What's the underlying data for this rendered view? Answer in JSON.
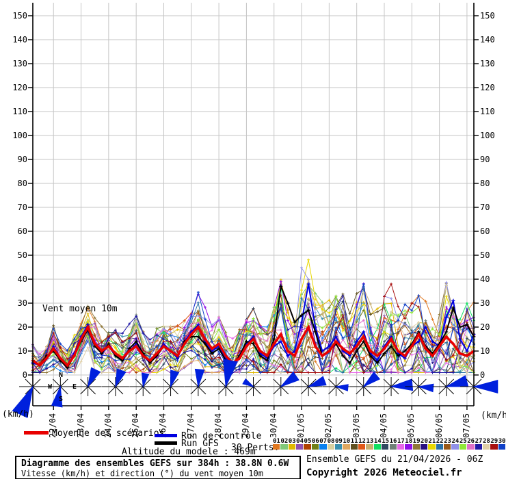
{
  "chart_data": {
    "type": "line",
    "title": "Vent moyen 10m",
    "unit_left": "(km/h)",
    "unit_right": "(km/h)",
    "ylim": [
      0,
      155
    ],
    "yticks": [
      0,
      10,
      20,
      30,
      40,
      50,
      60,
      70,
      80,
      90,
      100,
      110,
      120,
      130,
      140,
      150
    ],
    "x_day_labels": [
      "22/04",
      "23/04",
      "24/04",
      "25/04",
      "26/04",
      "27/04",
      "28/04",
      "29/04",
      "30/04",
      "01/05",
      "02/05",
      "03/05",
      "04/05",
      "05/05",
      "06/05",
      "07/05"
    ],
    "hours_per_step": 6,
    "total_hours": 384,
    "grid_color": "#c6c6c6",
    "axis_color": "#000000",
    "arrow_color": "#0020dd",
    "series": [
      {
        "name": "mean",
        "label": "Moyenne des scénarios",
        "color": "#e80000",
        "width": 3.5,
        "values": [
          6,
          4,
          7,
          11,
          7,
          4,
          8,
          15,
          20,
          13,
          10,
          12,
          9,
          7,
          10,
          12,
          8,
          6,
          9,
          12,
          10,
          8,
          13,
          17,
          20,
          15,
          11,
          13,
          8,
          5,
          7,
          12,
          15,
          10,
          8,
          13,
          17,
          10,
          8,
          15,
          20,
          12,
          8,
          10,
          14,
          11,
          9,
          12,
          16,
          10,
          8,
          11,
          15,
          10,
          8,
          12,
          17,
          11,
          8,
          12,
          16,
          13,
          9,
          8,
          10
        ]
      },
      {
        "name": "control",
        "label": "Run de contrôle",
        "color": "#0000e0",
        "width": 2,
        "values": [
          5,
          4,
          7,
          12,
          7,
          4,
          9,
          16,
          21,
          13,
          9,
          12,
          8,
          6,
          10,
          13,
          8,
          5,
          9,
          13,
          10,
          7,
          14,
          18,
          21,
          14,
          10,
          12,
          7,
          4,
          8,
          13,
          16,
          9,
          7,
          12,
          14,
          8,
          10,
          22,
          38,
          20,
          10,
          12,
          16,
          10,
          8,
          14,
          18,
          9,
          6,
          12,
          16,
          9,
          7,
          12,
          14,
          20,
          14,
          12,
          24,
          31,
          15,
          10,
          17
        ]
      },
      {
        "name": "gfs",
        "label": "Run GFS",
        "color": "#000000",
        "width": 2,
        "values": [
          6,
          4,
          8,
          10,
          6,
          3,
          8,
          14,
          19,
          12,
          9,
          13,
          8,
          6,
          11,
          14,
          9,
          5,
          8,
          12,
          10,
          8,
          14,
          16,
          16,
          13,
          9,
          11,
          6,
          4,
          8,
          14,
          13,
          8,
          6,
          15,
          37,
          30,
          22,
          25,
          27,
          18,
          8,
          10,
          13,
          8,
          5,
          10,
          14,
          8,
          5,
          9,
          12,
          8,
          10,
          13,
          18,
          12,
          9,
          13,
          18,
          28,
          20,
          21,
          16
        ]
      }
    ],
    "ensemble": {
      "count": 30,
      "seed": 1234,
      "spread": [
        4,
        4,
        4,
        5,
        4,
        4,
        5,
        5,
        5,
        6,
        6,
        6,
        6,
        6,
        6,
        7,
        7,
        6,
        6,
        7,
        7,
        7,
        7,
        8,
        8,
        8,
        7,
        7,
        7,
        6,
        7,
        9,
        9,
        8,
        8,
        12,
        13,
        13,
        12,
        15,
        17,
        16,
        13,
        13,
        14,
        13,
        12,
        14,
        15,
        13,
        12,
        13,
        14,
        13,
        12,
        13,
        14,
        14,
        13,
        13,
        15,
        15,
        13,
        12,
        12
      ],
      "colors": [
        "#e07820",
        "#80c878",
        "#e0b800",
        "#9050b0",
        "#b04000",
        "#708018",
        "#0880f0",
        "#d8d0a0",
        "#3890b0",
        "#e0a860",
        "#605020",
        "#e05818",
        "#c8b070",
        "#10e060",
        "#304860",
        "#708078",
        "#e868e8",
        "#9010e8",
        "#907838",
        "#281080",
        "#e8d800",
        "#2870a8",
        "#985818",
        "#9090e8",
        "#90e838",
        "#e070c8",
        "#2018a8",
        "#e0d0a8",
        "#a81010",
        "#1040c8"
      ]
    },
    "wind_arrows": [
      {
        "dir": 205,
        "len": 46
      },
      {
        "dir": 190,
        "len": 30
      },
      {
        "dir": 25,
        "len": 28
      },
      {
        "dir": 20,
        "len": 26
      },
      {
        "dir": 10,
        "len": 20
      },
      {
        "dir": 15,
        "len": 24
      },
      {
        "dir": 5,
        "len": 26
      },
      {
        "dir": 10,
        "len": 40
      },
      {
        "dir": 300,
        "len": 16
      },
      {
        "dir": 55,
        "len": 28
      },
      {
        "dir": 70,
        "len": 26
      },
      {
        "dir": 95,
        "len": 18
      },
      {
        "dir": 50,
        "len": 26
      },
      {
        "dir": 85,
        "len": 32
      },
      {
        "dir": 95,
        "len": 22
      },
      {
        "dir": 75,
        "len": 32
      },
      {
        "dir": 90,
        "len": 36
      }
    ],
    "compass": {
      "n": "N",
      "e": "E",
      "s": "S",
      "w": "W"
    }
  },
  "legend": {
    "mean_label": "Moyenne des scénarios",
    "control_label": "Run de contrôle",
    "gfs_label": "Run GFS",
    "perts_label": "30 Perts.",
    "member_numbers": [
      "01",
      "02",
      "03",
      "04",
      "05",
      "06",
      "07",
      "08",
      "09",
      "10",
      "11",
      "12",
      "13",
      "14",
      "15",
      "16",
      "17",
      "18",
      "19",
      "20",
      "21",
      "22",
      "23",
      "24",
      "25",
      "26",
      "27",
      "28",
      "29",
      "30"
    ]
  },
  "footer": {
    "altitude_label": "Altitude du modele : 469m",
    "box_title": "Diagramme des ensembles GEFS sur 384h : 38.8N 0.6W",
    "box_subtitle": "Vitesse (km/h) et direction (°) du vent moyen 10m",
    "run_info": "Ensemble GEFS du 21/04/2026 - 06Z",
    "copyright": "Copyright 2026 Meteociel.fr"
  }
}
